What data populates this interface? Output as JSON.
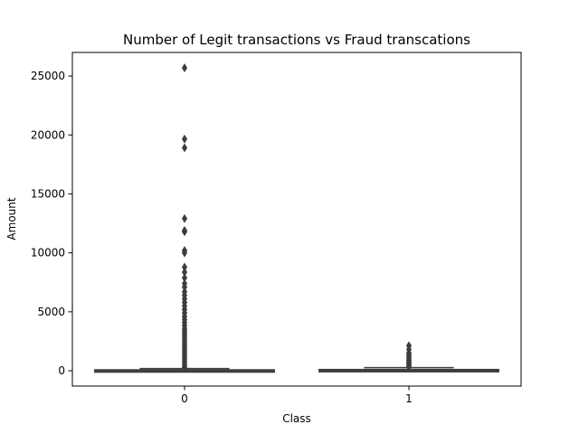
{
  "chart_data": {
    "type": "box",
    "title": "Number of Legit transactions vs Fraud transcations",
    "xlabel": "Class",
    "ylabel": "Amount",
    "categories": [
      "0",
      "1"
    ],
    "ylim": [
      -1300,
      27000
    ],
    "yticks": [
      0,
      5000,
      10000,
      15000,
      20000,
      25000
    ],
    "grid": false,
    "legend": "none",
    "colors": {
      "box_fill": "#3d3d3d",
      "line": "#3d3d3d",
      "frame": "#000000",
      "background": "#ffffff"
    },
    "boxes": [
      {
        "category": "0",
        "q1": 5,
        "median": 22,
        "q3": 77,
        "whisker_low": 0,
        "whisker_high": 185,
        "outliers": [
          25691,
          19656,
          18910,
          12910,
          11898,
          11789,
          10200,
          10000,
          8790,
          8360,
          7880,
          7400,
          7100,
          6700,
          6400,
          6100,
          5800,
          5500,
          5200,
          4900,
          4600,
          4350,
          4100,
          3850,
          3600,
          3400,
          3200,
          3000,
          2800,
          2600,
          2400,
          2200,
          2000,
          1800,
          1600,
          1400,
          1200,
          1000,
          800,
          600,
          400,
          250
        ]
      },
      {
        "category": "1",
        "q1": 1,
        "median": 9,
        "q3": 105,
        "whisker_low": 0,
        "whisker_high": 260,
        "outliers": [
          2125,
          1810,
          1500,
          1350,
          1200,
          1050,
          900,
          780,
          660,
          540,
          420,
          320
        ]
      }
    ]
  }
}
